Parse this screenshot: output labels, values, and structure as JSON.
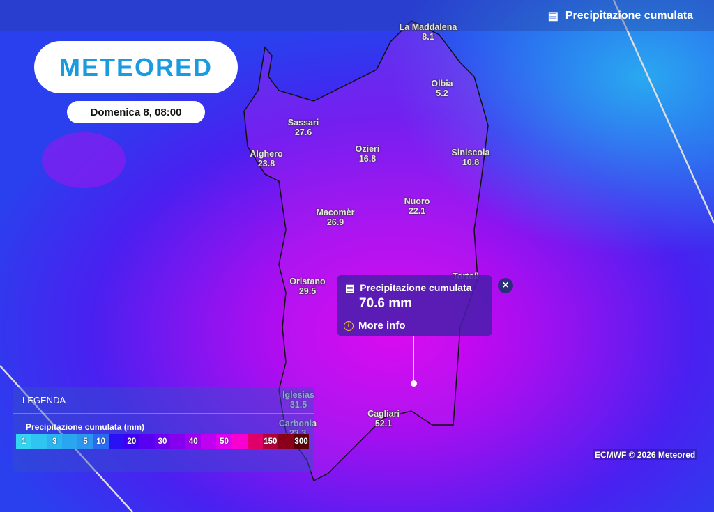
{
  "header": {
    "layer_title": "Precipitazione cumulata",
    "layer_icon": "rain-gauge-icon"
  },
  "logo": "METEORED",
  "date": "Domenica 8, 08:00",
  "cities": [
    {
      "name": "La Maddalena",
      "value": "8.1"
    },
    {
      "name": "Olbia",
      "value": "5.2"
    },
    {
      "name": "Sassari",
      "value": "27.6"
    },
    {
      "name": "Ozieri",
      "value": "16.8"
    },
    {
      "name": "Siniscola",
      "value": "10.8"
    },
    {
      "name": "Alghero",
      "value": "23.8"
    },
    {
      "name": "Nuoro",
      "value": "22.1"
    },
    {
      "name": "Macomèr",
      "value": "26.9"
    },
    {
      "name": "Oristano",
      "value": "29.5"
    },
    {
      "name": "Tortolì",
      "value": ""
    },
    {
      "name": "Iglesias",
      "value": "31.5"
    },
    {
      "name": "Carbonia",
      "value": "23.3"
    },
    {
      "name": "Cagliari",
      "value": "52.1"
    }
  ],
  "popup": {
    "title": "Precipitazione cumulata",
    "value": "70.6 mm",
    "more_info": "More info",
    "close": "×"
  },
  "legend": {
    "title": "LEGENDA",
    "subtitle": "Precipitazione cumulata (mm)",
    "scale": [
      {
        "label": "1",
        "color": "#34d4f2"
      },
      {
        "label": "",
        "color": "#30c4f2"
      },
      {
        "label": "3",
        "color": "#2cb4f0"
      },
      {
        "label": "",
        "color": "#2aa6ef"
      },
      {
        "label": "5",
        "color": "#2a96ee"
      },
      {
        "label": "10",
        "color": "#2a6cf0"
      },
      {
        "label": "",
        "color": "#2a10f4"
      },
      {
        "label": "20",
        "color": "#4000f2"
      },
      {
        "label": "",
        "color": "#5a00f0"
      },
      {
        "label": "30",
        "color": "#7000f0"
      },
      {
        "label": "",
        "color": "#8600f0"
      },
      {
        "label": "40",
        "color": "#a000f0"
      },
      {
        "label": "",
        "color": "#c000f0"
      },
      {
        "label": "50",
        "color": "#dc00f0"
      },
      {
        "label": "",
        "color": "#f800d0"
      },
      {
        "label": "",
        "color": "#e0006a"
      },
      {
        "label": "150",
        "color": "#b0003a"
      },
      {
        "label": "",
        "color": "#8a0018"
      },
      {
        "label": "300",
        "color": "#5a0008"
      }
    ]
  },
  "credit": "ECMWF © 2026 Meteored"
}
